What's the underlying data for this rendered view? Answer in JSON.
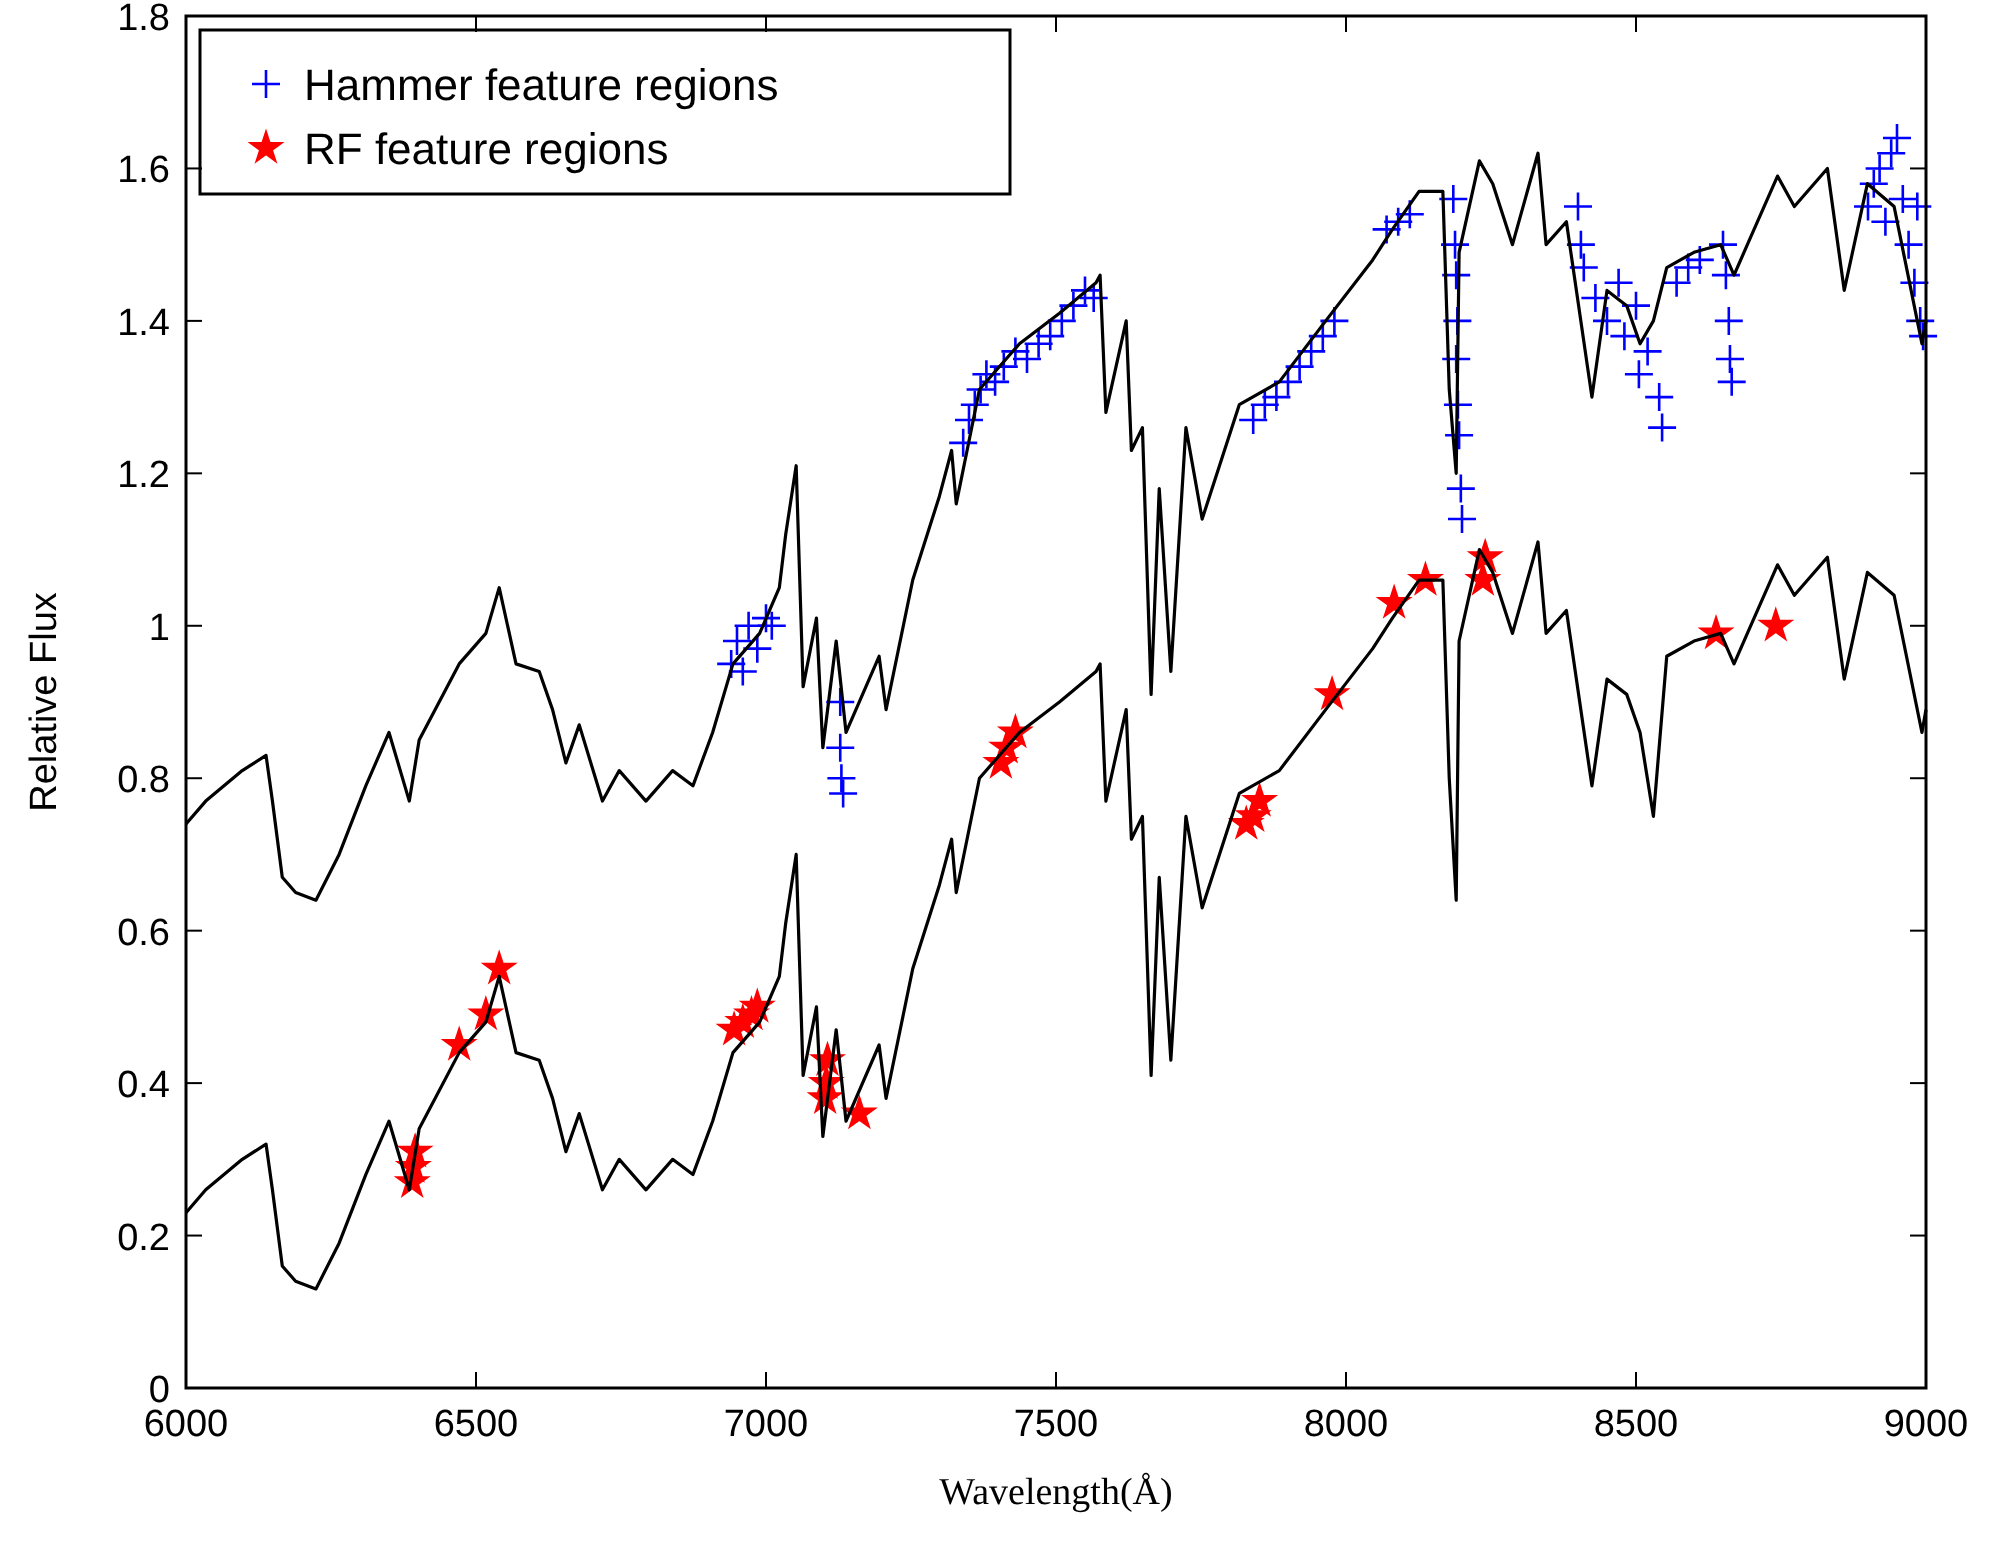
{
  "chart_data": {
    "type": "line",
    "xlabel": "Wavelength(Å)",
    "ylabel": "Relative Flux",
    "xlim": [
      6000,
      9000
    ],
    "ylim": [
      0,
      1.8
    ],
    "xticks": [
      6000,
      6500,
      7000,
      7500,
      8000,
      8500,
      9000
    ],
    "yticks": [
      0,
      0.2,
      0.4,
      0.6,
      0.8,
      1,
      1.2,
      1.4,
      1.6,
      1.8
    ],
    "grid": false,
    "legend": "top left",
    "line_style": "solid",
    "x": [
      6000,
      6034,
      6097,
      6138,
      6149,
      6166,
      6189,
      6224,
      6264,
      6310,
      6350,
      6385,
      6402,
      6471,
      6517,
      6540,
      6569,
      6609,
      6632,
      6655,
      6678,
      6718,
      6747,
      6793,
      6839,
      6874,
      6908,
      6943,
      6989,
      7023,
      7034,
      7052,
      7064,
      7087,
      7098,
      7121,
      7138,
      7195,
      7207,
      7253,
      7299,
      7320,
      7328,
      7368,
      7437,
      7506,
      7569,
      7576,
      7586,
      7621,
      7630,
      7649,
      7664,
      7678,
      7698,
      7724,
      7752,
      7816,
      7885,
      7965,
      8046,
      8080,
      8126,
      8167,
      8178,
      8190,
      8195,
      8230,
      8253,
      8287,
      8331,
      8345,
      8380,
      8424,
      8450,
      8484,
      8507,
      8530,
      8553,
      8600,
      8646,
      8669,
      8692,
      8744,
      8773,
      8830,
      8859,
      8899,
      8945,
      8993,
      9000
    ],
    "series": [
      {
        "color": "#000000",
        "marker": "none",
        "values": [
          0.74,
          0.77,
          0.81,
          0.83,
          0.77,
          0.67,
          0.65,
          0.64,
          0.7,
          0.79,
          0.86,
          0.77,
          0.85,
          0.95,
          0.99,
          1.05,
          0.95,
          0.94,
          0.89,
          0.82,
          0.87,
          0.77,
          0.81,
          0.77,
          0.81,
          0.79,
          0.86,
          0.95,
          0.99,
          1.05,
          1.12,
          1.21,
          0.92,
          1.01,
          0.84,
          0.98,
          0.86,
          0.96,
          0.89,
          1.06,
          1.17,
          1.23,
          1.16,
          1.31,
          1.37,
          1.41,
          1.45,
          1.46,
          1.28,
          1.4,
          1.23,
          1.26,
          0.91,
          1.18,
          0.94,
          1.26,
          1.14,
          1.29,
          1.32,
          1.4,
          1.48,
          1.52,
          1.57,
          1.57,
          1.31,
          1.2,
          1.49,
          1.61,
          1.58,
          1.5,
          1.62,
          1.5,
          1.53,
          1.3,
          1.44,
          1.42,
          1.37,
          1.4,
          1.47,
          1.49,
          1.5,
          1.46,
          1.5,
          1.59,
          1.55,
          1.6,
          1.44,
          1.58,
          1.55,
          1.37,
          1.4
        ]
      },
      {
        "color": "#000000",
        "marker": "none",
        "values": [
          0.23,
          0.26,
          0.3,
          0.32,
          0.26,
          0.16,
          0.14,
          0.13,
          0.19,
          0.28,
          0.35,
          0.26,
          0.34,
          0.44,
          0.48,
          0.54,
          0.44,
          0.43,
          0.38,
          0.31,
          0.36,
          0.26,
          0.3,
          0.26,
          0.3,
          0.28,
          0.35,
          0.44,
          0.48,
          0.54,
          0.61,
          0.7,
          0.41,
          0.5,
          0.33,
          0.47,
          0.35,
          0.45,
          0.38,
          0.55,
          0.66,
          0.72,
          0.65,
          0.8,
          0.86,
          0.9,
          0.94,
          0.95,
          0.77,
          0.89,
          0.72,
          0.75,
          0.41,
          0.67,
          0.43,
          0.75,
          0.63,
          0.78,
          0.81,
          0.89,
          0.97,
          1.01,
          1.06,
          1.06,
          0.8,
          0.64,
          0.98,
          1.1,
          1.07,
          0.99,
          1.11,
          0.99,
          1.02,
          0.79,
          0.93,
          0.91,
          0.86,
          0.75,
          0.96,
          0.98,
          0.99,
          0.95,
          0.99,
          1.08,
          1.04,
          1.09,
          0.93,
          1.07,
          1.04,
          0.86,
          0.89
        ]
      },
      {
        "type": "scatter",
        "name": "Hammer feature regions",
        "color": "#0000ff",
        "marker": "cross",
        "x": [
          6940,
          6950,
          6960,
          6970,
          6985,
          7000,
          7010,
          7128,
          7128,
          7130,
          7133,
          7340,
          7350,
          7360,
          7370,
          7380,
          7395,
          7410,
          7430,
          7450,
          7470,
          7490,
          7510,
          7530,
          7550,
          7565,
          7840,
          7860,
          7880,
          7900,
          7920,
          7940,
          7960,
          7980,
          8070,
          8090,
          8110,
          8185,
          8188,
          8190,
          8192,
          8190,
          8193,
          8195,
          8198,
          8200,
          8400,
          8405,
          8410,
          8430,
          8450,
          8470,
          8480,
          8500,
          8505,
          8520,
          8540,
          8545,
          8570,
          8590,
          8610,
          8650,
          8655,
          8660,
          8662,
          8665,
          8900,
          8910,
          8920,
          8930,
          8940,
          8950,
          8960,
          8970,
          8980,
          8990,
          8995,
          8985
        ],
        "values": [
          0.95,
          0.98,
          0.94,
          1.0,
          0.97,
          1.01,
          1.0,
          0.9,
          0.84,
          0.8,
          0.78,
          1.24,
          1.27,
          1.29,
          1.31,
          1.33,
          1.32,
          1.34,
          1.36,
          1.35,
          1.37,
          1.38,
          1.4,
          1.42,
          1.44,
          1.43,
          1.27,
          1.29,
          1.3,
          1.32,
          1.34,
          1.36,
          1.38,
          1.4,
          1.52,
          1.53,
          1.54,
          1.56,
          1.5,
          1.46,
          1.4,
          1.35,
          1.29,
          1.25,
          1.18,
          1.14,
          1.55,
          1.5,
          1.47,
          1.43,
          1.4,
          1.45,
          1.38,
          1.42,
          1.33,
          1.36,
          1.3,
          1.26,
          1.45,
          1.47,
          1.48,
          1.5,
          1.46,
          1.4,
          1.35,
          1.32,
          1.55,
          1.58,
          1.6,
          1.53,
          1.62,
          1.64,
          1.56,
          1.5,
          1.45,
          1.4,
          1.38,
          1.55
        ]
      },
      {
        "type": "scatter",
        "name": "RF feature regions",
        "color": "#ff0000",
        "marker": "star",
        "x": [
          6390,
          6392,
          6395,
          6471,
          6517,
          6540,
          6945,
          6960,
          6975,
          6985,
          7102,
          7104,
          7106,
          7161,
          7405,
          7415,
          7430,
          7828,
          7840,
          7851,
          7976,
          8083,
          8137,
          8236,
          8240,
          8638,
          8741
        ],
        "values": [
          0.27,
          0.29,
          0.31,
          0.45,
          0.49,
          0.55,
          0.47,
          0.48,
          0.49,
          0.5,
          0.38,
          0.4,
          0.43,
          0.36,
          0.82,
          0.84,
          0.86,
          0.74,
          0.75,
          0.77,
          0.91,
          1.03,
          1.06,
          1.06,
          1.09,
          0.99,
          1.0
        ]
      }
    ]
  }
}
